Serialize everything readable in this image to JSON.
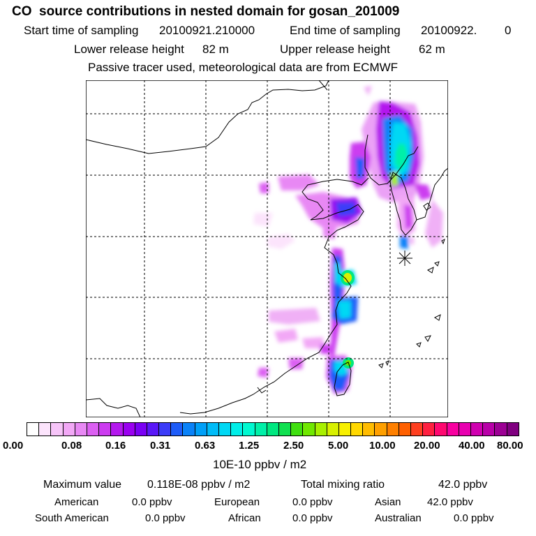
{
  "header": {
    "title": "CO  source contributions in nested domain for gosan_201009",
    "start_label": "Start time of sampling",
    "start_value": "20100921.210000",
    "end_label": "End time of sampling",
    "end_value": "20100922.",
    "end_value_tail": "0",
    "lower_label": "Lower release height",
    "lower_value": "82 m",
    "upper_label": "Upper release height",
    "upper_value": "62 m",
    "info": "Passive tracer used, meteorological data are from ECMWF"
  },
  "map": {
    "receptor": "gosan",
    "receptor_icon": "asterisk-marker-icon",
    "grid": "dashed lat-lon lines"
  },
  "legend": {
    "ticks": [
      "0.00",
      "0.08",
      "0.16",
      "0.31",
      "0.63",
      "1.25",
      "2.50",
      "5.00",
      "10.00",
      "20.00",
      "40.00",
      "80.00"
    ],
    "unit": "10E-10 ppbv / m2",
    "colors": [
      "#ffffff",
      "#fce4fc",
      "#f6c4f8",
      "#f2a8f6",
      "#e888f4",
      "#dc60f2",
      "#cc3cf0",
      "#b418ee",
      "#9a00f0",
      "#7a00f4",
      "#5a18f8",
      "#3c3cf8",
      "#1e5cf8",
      "#0a82f8",
      "#00a0f8",
      "#00bcf8",
      "#00d8f4",
      "#00eee8",
      "#00f8d0",
      "#00f0a8",
      "#00e880",
      "#10e050",
      "#40e010",
      "#70e800",
      "#a8f000",
      "#d8f000",
      "#f8f000",
      "#ffd800",
      "#ffbc00",
      "#ffa000",
      "#ff8000",
      "#ff6000",
      "#ff4020",
      "#ff2040",
      "#ff0870",
      "#f800a0",
      "#e800b0",
      "#d000b0",
      "#b800a8",
      "#9c0094",
      "#800080"
    ]
  },
  "footer": {
    "max_label": "Maximum value",
    "max_value": "0.118E-08 ppbv / m2",
    "total_label": "Total mixing ratio",
    "total_value": "42.0 ppbv",
    "regions": [
      {
        "name": "American",
        "value": "0.0 ppbv"
      },
      {
        "name": "European",
        "value": "0.0 ppbv"
      },
      {
        "name": "Asian",
        "value": "42.0 ppbv"
      },
      {
        "name": "South American",
        "value": "0.0 ppbv"
      },
      {
        "name": "African",
        "value": "0.0 ppbv"
      },
      {
        "name": "Australian",
        "value": "0.0 ppbv"
      }
    ]
  }
}
